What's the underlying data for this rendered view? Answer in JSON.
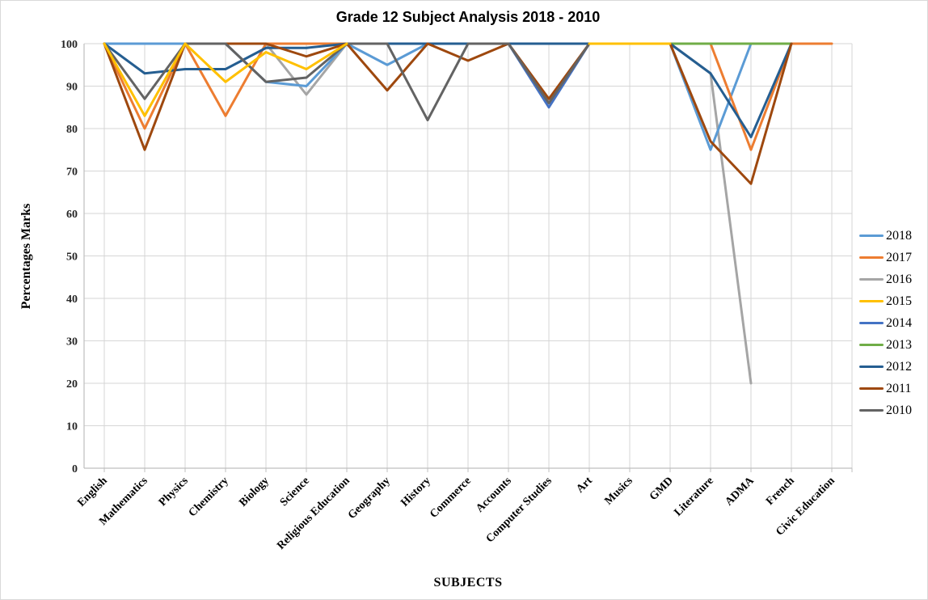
{
  "chart": {
    "title": "Grade 12 Subject Analysis 2018 - 2010",
    "x_axis_title": "SUBJECTS",
    "y_axis_title": "Percentages Marks"
  },
  "chart_data": {
    "type": "line",
    "title": "Grade 12 Subject Analysis 2018 - 2010",
    "xlabel": "SUBJECTS",
    "ylabel": "Percentages Marks",
    "ylim": [
      0,
      100
    ],
    "ytick_step": 10,
    "yticks": [
      0,
      10,
      20,
      30,
      40,
      50,
      60,
      70,
      80,
      90,
      100
    ],
    "grid": true,
    "legend_position": "right",
    "categories": [
      "English",
      "Mathematics",
      "Physics",
      "Chemistry",
      "Biology",
      "Science",
      "Religious Education",
      "Geography",
      "History",
      "Commerce",
      "Accounts",
      "Computer Studies",
      "Art",
      "Musics",
      "GMD",
      "Literature",
      "ADMA",
      "French",
      "Civic Education"
    ],
    "series": [
      {
        "name": "2018",
        "color": "#5B9BD5",
        "values": [
          100,
          100,
          100,
          100,
          91,
          90,
          100,
          95,
          100,
          100,
          100,
          100,
          100,
          100,
          100,
          75,
          100,
          null,
          null
        ]
      },
      {
        "name": "2017",
        "color": "#ED7D31",
        "values": [
          100,
          80,
          100,
          83,
          100,
          100,
          100,
          100,
          100,
          100,
          100,
          100,
          100,
          100,
          100,
          100,
          75,
          100,
          100
        ]
      },
      {
        "name": "2016",
        "color": "#A5A5A5",
        "values": [
          100,
          100,
          100,
          100,
          100,
          88,
          100,
          100,
          100,
          100,
          100,
          100,
          100,
          100,
          100,
          93,
          20,
          null,
          null
        ]
      },
      {
        "name": "2015",
        "color": "#FFC000",
        "values": [
          100,
          83,
          100,
          91,
          98,
          94,
          100,
          null,
          null,
          null,
          null,
          null,
          100,
          100,
          100,
          null,
          null,
          null,
          null
        ]
      },
      {
        "name": "2014",
        "color": "#4472C4",
        "values": [
          100,
          100,
          100,
          100,
          100,
          100,
          100,
          100,
          100,
          100,
          100,
          85,
          100,
          100,
          100,
          null,
          null,
          null,
          null
        ]
      },
      {
        "name": "2013",
        "color": "#70AD47",
        "values": [
          null,
          null,
          null,
          null,
          null,
          null,
          null,
          null,
          null,
          null,
          null,
          null,
          null,
          null,
          100,
          100,
          100,
          100,
          null
        ]
      },
      {
        "name": "2012",
        "color": "#255E91",
        "values": [
          100,
          93,
          94,
          94,
          99,
          99,
          100,
          100,
          100,
          100,
          100,
          100,
          100,
          100,
          100,
          93,
          78,
          100,
          null
        ]
      },
      {
        "name": "2011",
        "color": "#9E480E",
        "values": [
          100,
          75,
          100,
          100,
          100,
          97,
          100,
          89,
          100,
          96,
          100,
          87,
          100,
          100,
          100,
          77,
          67,
          100,
          null
        ]
      },
      {
        "name": "2010",
        "color": "#636363",
        "values": [
          100,
          87,
          100,
          100,
          91,
          92,
          100,
          100,
          82,
          100,
          100,
          86,
          100,
          null,
          null,
          null,
          null,
          null,
          null
        ]
      }
    ],
    "draw_order": [
      "2016",
      "2014",
      "2018",
      "2017",
      "2013",
      "2012",
      "2011",
      "2010",
      "2015"
    ],
    "legend_order": [
      "2018",
      "2017",
      "2016",
      "2015",
      "2014",
      "2013",
      "2012",
      "2011",
      "2010"
    ]
  },
  "style": {
    "gridline_color": "#D6D6D6",
    "axis_color": "#BFBFBF",
    "tick_label_color": "#262626",
    "line_width": 3
  }
}
